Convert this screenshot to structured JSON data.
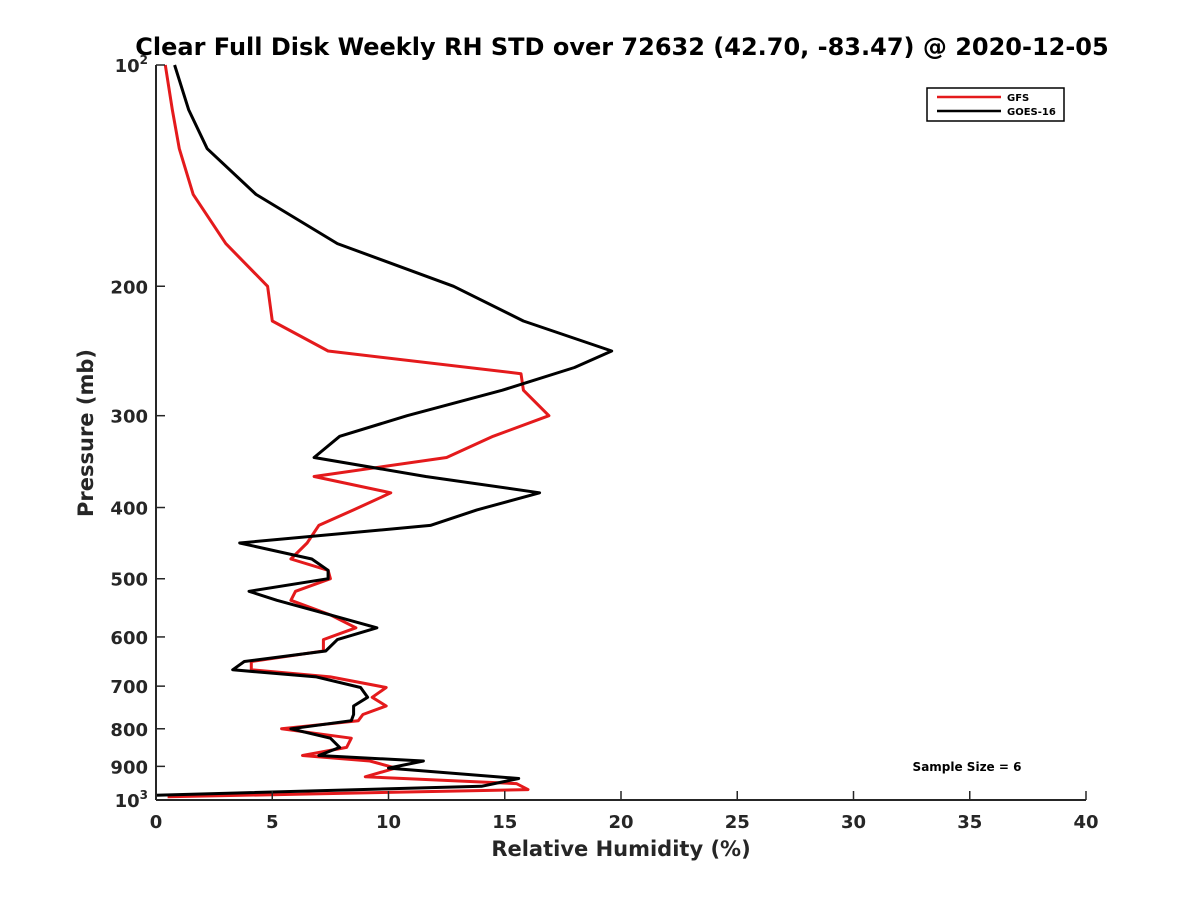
{
  "chart_data": {
    "type": "line",
    "title": "Clear Full Disk Weekly RH STD over 72632 (42.70, -83.47) @ 2020-12-05",
    "xlabel": "Relative Humidity (%)",
    "ylabel": "Pressure (mb)",
    "xlim": [
      0,
      40
    ],
    "ylim": [
      100,
      1000
    ],
    "y_scale": "log",
    "y_reversed": true,
    "grid": false,
    "legend_position": "top-right",
    "x_ticks": [
      "0",
      "5",
      "10",
      "15",
      "20",
      "25",
      "30",
      "35",
      "40"
    ],
    "y_ticks": [
      {
        "value": 100,
        "base": "10",
        "exp": "2"
      },
      {
        "value": 200,
        "label": "200"
      },
      {
        "value": 300,
        "label": "300"
      },
      {
        "value": 400,
        "label": "400"
      },
      {
        "value": 500,
        "label": "500"
      },
      {
        "value": 600,
        "label": "600"
      },
      {
        "value": 700,
        "label": "700"
      },
      {
        "value": 800,
        "label": "800"
      },
      {
        "value": 900,
        "label": "900"
      },
      {
        "value": 1000,
        "base": "10",
        "exp": "3"
      }
    ],
    "annotation": "Sample Size = 6",
    "series": [
      {
        "name": "GFS",
        "color": "#e41a1c",
        "points": [
          [
            0.4,
            100
          ],
          [
            0.7,
            115
          ],
          [
            1.0,
            130
          ],
          [
            1.6,
            150
          ],
          [
            3.0,
            175
          ],
          [
            4.8,
            200
          ],
          [
            5.0,
            223
          ],
          [
            7.4,
            245
          ],
          [
            15.7,
            263
          ],
          [
            15.8,
            277
          ],
          [
            16.9,
            300
          ],
          [
            14.5,
            320
          ],
          [
            12.5,
            342
          ],
          [
            6.8,
            363
          ],
          [
            10.1,
            382
          ],
          [
            8.5,
            403
          ],
          [
            7.0,
            423
          ],
          [
            6.5,
            447
          ],
          [
            5.8,
            470
          ],
          [
            7.4,
            487
          ],
          [
            7.5,
            500
          ],
          [
            6.0,
            520
          ],
          [
            5.8,
            535
          ],
          [
            7.5,
            560
          ],
          [
            8.6,
            583
          ],
          [
            7.2,
            605
          ],
          [
            7.2,
            627
          ],
          [
            4.1,
            648
          ],
          [
            4.1,
            665
          ],
          [
            7.5,
            680
          ],
          [
            9.9,
            703
          ],
          [
            9.3,
            725
          ],
          [
            9.9,
            745
          ],
          [
            8.9,
            765
          ],
          [
            8.7,
            780
          ],
          [
            5.4,
            800
          ],
          [
            8.4,
            824
          ],
          [
            8.2,
            848
          ],
          [
            6.3,
            870
          ],
          [
            9.2,
            885
          ],
          [
            10.3,
            905
          ],
          [
            9.0,
            930
          ],
          [
            15.5,
            950
          ],
          [
            16.0,
            968
          ],
          [
            0.5,
            990
          ]
        ]
      },
      {
        "name": "GOES-16",
        "color": "#000000",
        "points": [
          [
            0.8,
            100
          ],
          [
            1.4,
            115
          ],
          [
            2.2,
            130
          ],
          [
            4.3,
            150
          ],
          [
            7.8,
            175
          ],
          [
            12.8,
            200
          ],
          [
            15.8,
            223
          ],
          [
            19.6,
            245
          ],
          [
            18.0,
            258
          ],
          [
            14.9,
            277
          ],
          [
            10.8,
            300
          ],
          [
            7.9,
            320
          ],
          [
            6.8,
            342
          ],
          [
            11.6,
            363
          ],
          [
            16.5,
            382
          ],
          [
            13.8,
            403
          ],
          [
            11.8,
            423
          ],
          [
            3.6,
            447
          ],
          [
            6.7,
            470
          ],
          [
            7.4,
            487
          ],
          [
            7.4,
            500
          ],
          [
            4.0,
            520
          ],
          [
            5.2,
            535
          ],
          [
            7.5,
            560
          ],
          [
            9.5,
            583
          ],
          [
            7.8,
            605
          ],
          [
            7.3,
            627
          ],
          [
            3.8,
            648
          ],
          [
            3.3,
            665
          ],
          [
            6.9,
            680
          ],
          [
            8.8,
            703
          ],
          [
            9.1,
            725
          ],
          [
            8.5,
            745
          ],
          [
            8.5,
            765
          ],
          [
            8.4,
            780
          ],
          [
            5.8,
            800
          ],
          [
            7.5,
            824
          ],
          [
            7.9,
            848
          ],
          [
            7.0,
            870
          ],
          [
            11.5,
            885
          ],
          [
            10.0,
            905
          ],
          [
            15.6,
            935
          ],
          [
            14.0,
            958
          ],
          [
            0.0,
            985
          ]
        ]
      }
    ]
  }
}
